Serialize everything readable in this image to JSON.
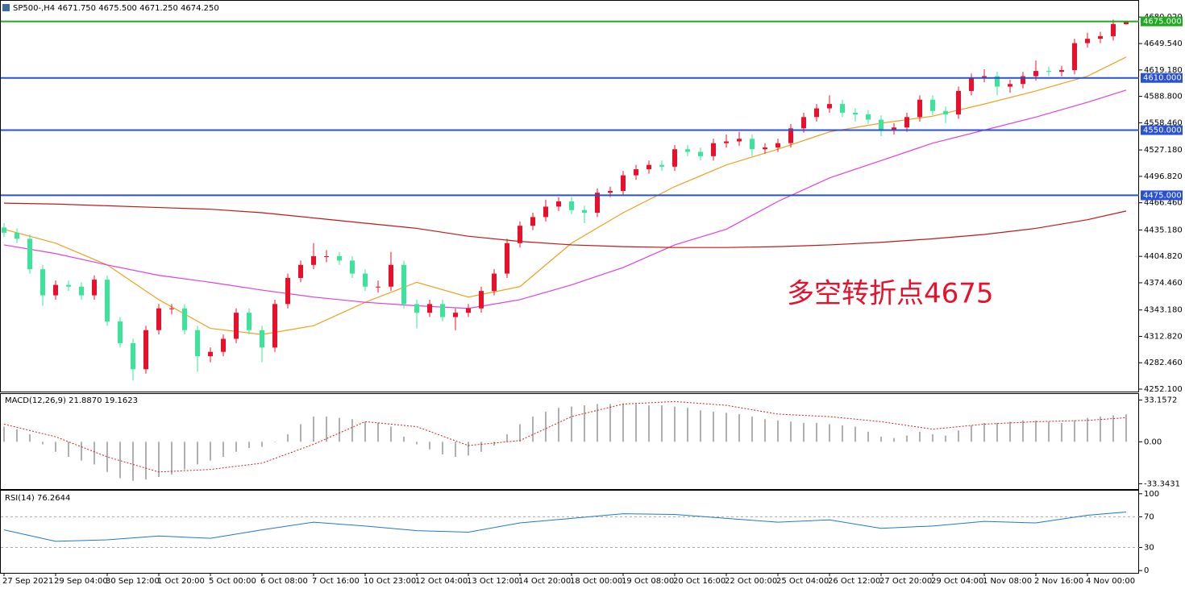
{
  "chart_data": [
    {
      "type": "candlestick",
      "title": "SP500-,H4  4671.750 4675.500 4671.250 4674.250",
      "annotation": "多空转折点4675",
      "categories": [
        "27 Sep 2021",
        null,
        null,
        null,
        "29 Sep 04:00",
        null,
        null,
        null,
        "30 Sep 12:00",
        null,
        null,
        null,
        "1 Oct 20:00",
        null,
        null,
        null,
        "5 Oct 00:00",
        null,
        null,
        null,
        "6 Oct 08:00",
        null,
        null,
        null,
        "7 Oct 16:00",
        null,
        null,
        null,
        "10 Oct 23:00",
        null,
        null,
        null,
        "12 Oct 04:00",
        null,
        null,
        null,
        "13 Oct 12:00",
        null,
        null,
        null,
        "14 Oct 20:00",
        null,
        null,
        null,
        "18 Oct 00:00",
        null,
        null,
        null,
        "19 Oct 08:00",
        null,
        null,
        null,
        "20 Oct 16:00",
        null,
        null,
        null,
        "22 Oct 00:00",
        null,
        null,
        null,
        "25 Oct 04:00",
        null,
        null,
        null,
        "26 Oct 12:00",
        null,
        null,
        null,
        "27 Oct 20:00",
        null,
        null,
        null,
        "29 Oct 04:00",
        null,
        null,
        null,
        "1 Nov 08:00",
        null,
        null,
        null,
        "2 Nov 16:00",
        null,
        null,
        null,
        "4 Nov 00:00",
        null,
        null,
        null
      ],
      "open": [
        4438,
        4432,
        4425,
        4390,
        4360,
        4372,
        4370,
        4360,
        4378,
        4330,
        4305,
        4275,
        4320,
        4345,
        4345,
        4320,
        4290,
        4295,
        4310,
        4340,
        4320,
        4300,
        4350,
        4380,
        4395,
        4405,
        4405,
        4400,
        4385,
        4370,
        4370,
        4395,
        4350,
        4340,
        4350,
        4335,
        4340,
        4345,
        4365,
        4385,
        4420,
        4440,
        4450,
        4462,
        4468,
        4458,
        4455,
        4478,
        4480,
        4498,
        4505,
        4510,
        4508,
        4528,
        4525,
        4520,
        4535,
        4537,
        4540,
        4528,
        4530,
        4535,
        4552,
        4565,
        4575,
        4580,
        4570,
        4568,
        4562,
        4550,
        4553,
        4565,
        4585,
        4572,
        4568,
        4595,
        4610,
        4612,
        4600,
        4603,
        4612,
        4618,
        4617,
        4619,
        4650,
        4655,
        4658,
        4671.75
      ],
      "high": [
        4443,
        4437,
        4430,
        4395,
        4377,
        4377,
        4375,
        4383,
        4383,
        4335,
        4310,
        4325,
        4350,
        4350,
        4350,
        4325,
        4300,
        4315,
        4345,
        4345,
        4325,
        4355,
        4385,
        4400,
        4420,
        4412,
        4410,
        4405,
        4390,
        4377,
        4410,
        4400,
        4355,
        4355,
        4355,
        4345,
        4350,
        4370,
        4390,
        4425,
        4445,
        4455,
        4470,
        4473,
        4473,
        4463,
        4483,
        4485,
        4503,
        4510,
        4515,
        4515,
        4533,
        4533,
        4530,
        4540,
        4545,
        4548,
        4545,
        4535,
        4540,
        4557,
        4570,
        4580,
        4590,
        4585,
        4575,
        4573,
        4567,
        4558,
        4570,
        4590,
        4590,
        4577,
        4600,
        4615,
        4620,
        4617,
        4608,
        4617,
        4630,
        4623,
        4624,
        4655,
        4662,
        4663,
        4677,
        4675.5
      ],
      "low": [
        4427,
        4420,
        4385,
        4348,
        4355,
        4365,
        4355,
        4355,
        4325,
        4300,
        4262,
        4270,
        4315,
        4338,
        4315,
        4272,
        4283,
        4290,
        4305,
        4315,
        4283,
        4295,
        4345,
        4375,
        4390,
        4398,
        4395,
        4380,
        4365,
        4363,
        4365,
        4345,
        4322,
        4335,
        4330,
        4320,
        4335,
        4340,
        4360,
        4380,
        4415,
        4435,
        4445,
        4457,
        4453,
        4443,
        4450,
        4473,
        4475,
        4493,
        4500,
        4503,
        4503,
        4520,
        4515,
        4515,
        4530,
        4532,
        4520,
        4523,
        4525,
        4530,
        4547,
        4560,
        4570,
        4565,
        4560,
        4557,
        4543,
        4545,
        4548,
        4560,
        4567,
        4558,
        4563,
        4590,
        4605,
        4590,
        4593,
        4598,
        4607,
        4612,
        4612,
        4614,
        4645,
        4650,
        4653,
        4671.25
      ],
      "close": [
        4432,
        4425,
        4390,
        4360,
        4372,
        4370,
        4360,
        4378,
        4330,
        4305,
        4275,
        4320,
        4345,
        4345,
        4320,
        4290,
        4295,
        4310,
        4340,
        4320,
        4300,
        4350,
        4380,
        4395,
        4405,
        4405,
        4400,
        4385,
        4370,
        4370,
        4395,
        4350,
        4340,
        4350,
        4335,
        4340,
        4345,
        4365,
        4385,
        4420,
        4440,
        4450,
        4462,
        4468,
        4458,
        4455,
        4478,
        4480,
        4498,
        4505,
        4510,
        4508,
        4528,
        4525,
        4520,
        4535,
        4537,
        4540,
        4528,
        4530,
        4535,
        4552,
        4565,
        4575,
        4580,
        4570,
        4568,
        4562,
        4550,
        4553,
        4565,
        4585,
        4572,
        4568,
        4595,
        4610,
        4612,
        4600,
        4603,
        4612,
        4618,
        4617,
        4619,
        4650,
        4655,
        4658,
        4672,
        4674.25
      ],
      "up_color": "#e8102a",
      "down_color": "#3de39b",
      "ylim": [
        4248.4,
        4698.7
      ],
      "yticks": [
        {
          "value": 4680.02,
          "label": "4680.020"
        },
        {
          "value": 4649.54,
          "label": "4649.540"
        },
        {
          "value": 4619.18,
          "label": "4619.180"
        },
        {
          "value": 4588.8,
          "label": "4588.800"
        },
        {
          "value": 4558.46,
          "label": "4558.460"
        },
        {
          "value": 4527.18,
          "label": "4527.180"
        },
        {
          "value": 4496.82,
          "label": "4496.820"
        },
        {
          "value": 4466.46,
          "label": "4466.460"
        },
        {
          "value": 4435.18,
          "label": "4435.180"
        },
        {
          "value": 4404.82,
          "label": "4404.820"
        },
        {
          "value": 4374.46,
          "label": "4374.460"
        },
        {
          "value": 4343.18,
          "label": "4343.180"
        },
        {
          "value": 4312.82,
          "label": "4312.820"
        },
        {
          "value": 4282.46,
          "label": "4282.460"
        },
        {
          "value": 4252.1,
          "label": "4252.100"
        }
      ],
      "moving_averages": [
        {
          "color": "#f0a020",
          "x": [
            0,
            4,
            8,
            12,
            16,
            20,
            24,
            28,
            32,
            36,
            40,
            44,
            48,
            52,
            56,
            60,
            64,
            68,
            72,
            76,
            80,
            84,
            87
          ],
          "values": [
            4436,
            4420,
            4395,
            4355,
            4322,
            4315,
            4325,
            4352,
            4375,
            4358,
            4370,
            4420,
            4455,
            4485,
            4510,
            4528,
            4548,
            4558,
            4566,
            4580,
            4595,
            4612,
            4634
          ]
        },
        {
          "color": "#e040e0",
          "x": [
            0,
            4,
            8,
            12,
            16,
            20,
            24,
            28,
            32,
            36,
            40,
            44,
            48,
            52,
            56,
            60,
            64,
            68,
            72,
            76,
            80,
            84,
            87
          ],
          "values": [
            4418,
            4408,
            4395,
            4383,
            4375,
            4366,
            4358,
            4352,
            4348,
            4345,
            4355,
            4372,
            4392,
            4418,
            4436,
            4468,
            4495,
            4515,
            4535,
            4550,
            4565,
            4582,
            4596
          ]
        },
        {
          "color": "#c01818",
          "x": [
            0,
            4,
            8,
            12,
            16,
            20,
            24,
            28,
            32,
            36,
            40,
            44,
            48,
            52,
            56,
            60,
            64,
            68,
            72,
            76,
            80,
            84,
            87
          ],
          "values": [
            4466,
            4465,
            4463,
            4461,
            4459,
            4455,
            4449,
            4443,
            4437,
            4428,
            4422,
            4418,
            4416,
            4415,
            4415,
            4416,
            4418,
            4421,
            4425,
            4430,
            4437,
            4447,
            4457
          ]
        }
      ],
      "levels": [
        {
          "value": 4675,
          "label": "4675.000",
          "color": "#1faa1f"
        },
        {
          "value": 4610,
          "label": "4610.000",
          "color": "#2850d8"
        },
        {
          "value": 4550,
          "label": "4550.000",
          "color": "#2850d8"
        },
        {
          "value": 4475,
          "label": "4475.000",
          "color": "#2850d8"
        }
      ]
    },
    {
      "type": "macd",
      "title": "MACD(12,26,9) 21.8870 19.1623",
      "values": [
        12,
        10,
        6,
        -2,
        -8,
        -12,
        -15,
        -18,
        -24,
        -29,
        -31,
        -30,
        -28,
        -26,
        -22,
        -18,
        -15,
        -12,
        -8,
        -5,
        -4,
        0,
        6,
        14,
        20,
        20,
        19,
        18,
        16,
        15,
        12,
        4,
        -2,
        -6,
        -10,
        -12,
        -11,
        -8,
        -3,
        6,
        14,
        20,
        24,
        27,
        28,
        29,
        30,
        30,
        30,
        30,
        29,
        29,
        28,
        27,
        25,
        24,
        23,
        22,
        20,
        18,
        17,
        16,
        15,
        15,
        14,
        13,
        12,
        8,
        4,
        3,
        5,
        8,
        6,
        5,
        9,
        13,
        15,
        15,
        16,
        17,
        17,
        16,
        15,
        17,
        19,
        20,
        21,
        21.887
      ],
      "color": "#b0b0b0",
      "signal": {
        "color": "#d02020",
        "x": [
          0,
          4,
          8,
          12,
          16,
          20,
          24,
          28,
          32,
          36,
          40,
          44,
          48,
          52,
          56,
          60,
          64,
          68,
          72,
          76,
          80,
          84,
          87
        ],
        "values": [
          14,
          4,
          -12,
          -24,
          -22,
          -17,
          -2,
          16,
          12,
          -3,
          1,
          20,
          30,
          32,
          29,
          22,
          20,
          16,
          10,
          14,
          16,
          17,
          19.1623
        ]
      },
      "ylim": [
        -37.6,
        38.0
      ],
      "yticks": [
        {
          "value": 33.1572,
          "label": "33.1572"
        },
        {
          "value": 0,
          "label": "0.00"
        },
        {
          "value": -33.3431,
          "label": "-33.3431"
        }
      ]
    },
    {
      "type": "rsi",
      "title": "RSI(14) 76.2644",
      "x": [
        0,
        4,
        8,
        12,
        16,
        20,
        24,
        28,
        32,
        36,
        40,
        44,
        48,
        52,
        56,
        60,
        64,
        68,
        72,
        76,
        80,
        84,
        87
      ],
      "values": [
        53,
        38,
        40,
        45,
        42,
        53,
        63,
        58,
        52,
        50,
        62,
        68,
        74,
        73,
        68,
        63,
        66,
        55,
        58,
        64,
        62,
        72,
        76.2644
      ],
      "color": "#1e78d0",
      "levels": [
        70,
        30
      ],
      "ylim": [
        -3,
        104
      ],
      "yticks": [
        100,
        70,
        30,
        0
      ]
    }
  ]
}
